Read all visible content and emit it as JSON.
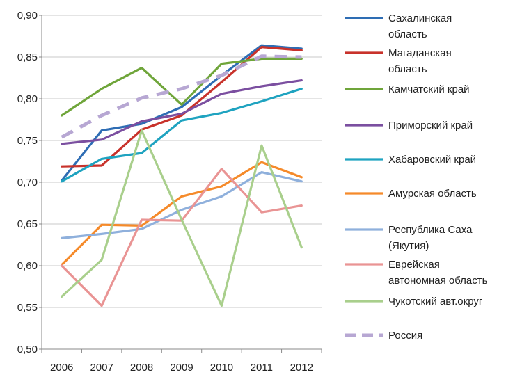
{
  "chart_data": {
    "type": "line",
    "title": "",
    "xlabel": "",
    "ylabel": "",
    "categories": [
      "2006",
      "2007",
      "2008",
      "2009",
      "2010",
      "2011",
      "2012"
    ],
    "ylim": [
      0.5,
      0.9
    ],
    "yticks": [
      "0,50",
      "0,55",
      "0,60",
      "0,65",
      "0,70",
      "0,75",
      "0,80",
      "0,85",
      "0,90"
    ],
    "ytick_values": [
      0.5,
      0.55,
      0.6,
      0.65,
      0.7,
      0.75,
      0.8,
      0.85,
      0.9
    ],
    "grid": "horizontal",
    "legend_position": "right",
    "series": [
      {
        "name": "Сахалинская область",
        "name_lines": [
          "Сахалинская",
          "область"
        ],
        "color": "#2e6db4",
        "dashed": false,
        "values": [
          0.702,
          0.762,
          0.77,
          0.79,
          0.828,
          0.864,
          0.86
        ]
      },
      {
        "name": "Магаданская область",
        "name_lines": [
          "Магаданская",
          "область"
        ],
        "color": "#c8322b",
        "dashed": false,
        "values": [
          0.719,
          0.72,
          0.763,
          0.78,
          0.82,
          0.862,
          0.858
        ]
      },
      {
        "name": "Камчатский край",
        "name_lines": [
          "Камчатский край"
        ],
        "color": "#6fa53a",
        "dashed": false,
        "values": [
          0.78,
          0.812,
          0.837,
          0.793,
          0.842,
          0.848,
          0.848
        ]
      },
      {
        "name": "Приморский край",
        "name_lines": [
          "Приморский край"
        ],
        "color": "#7b4fa0",
        "dashed": false,
        "values": [
          0.746,
          0.751,
          0.773,
          0.782,
          0.806,
          0.815,
          0.822
        ]
      },
      {
        "name": "Хабаровский край",
        "name_lines": [
          "Хабаровский край"
        ],
        "color": "#1fa3c0",
        "dashed": false,
        "values": [
          0.701,
          0.728,
          0.735,
          0.774,
          0.783,
          0.797,
          0.812
        ]
      },
      {
        "name": "Амурская область",
        "name_lines": [
          "Амурская область"
        ],
        "color": "#f58a2a",
        "dashed": false,
        "values": [
          0.601,
          0.649,
          0.648,
          0.683,
          0.695,
          0.724,
          0.706
        ]
      },
      {
        "name": "Республика Саха (Якутия)",
        "name_lines": [
          "Республика Саха",
          "(Якутия)"
        ],
        "color": "#8fb0dc",
        "dashed": false,
        "values": [
          0.633,
          0.638,
          0.644,
          0.667,
          0.683,
          0.712,
          0.701
        ]
      },
      {
        "name": "Еврейская автономная область",
        "name_lines": [
          "Еврейская",
          "автономная область"
        ],
        "color": "#e99494",
        "dashed": false,
        "values": [
          0.6,
          0.552,
          0.655,
          0.654,
          0.716,
          0.664,
          0.672
        ]
      },
      {
        "name": "Чукотский авт.округ",
        "name_lines": [
          "Чукотский авт.округ"
        ],
        "color": "#a9cf8c",
        "dashed": false,
        "values": [
          0.563,
          0.607,
          0.762,
          0.655,
          0.552,
          0.744,
          0.622
        ]
      },
      {
        "name": "Россия",
        "name_lines": [
          "Россия"
        ],
        "color": "#b7a7d3",
        "dashed": true,
        "values": [
          0.754,
          0.78,
          0.801,
          0.812,
          0.828,
          0.851,
          0.85
        ]
      }
    ]
  }
}
